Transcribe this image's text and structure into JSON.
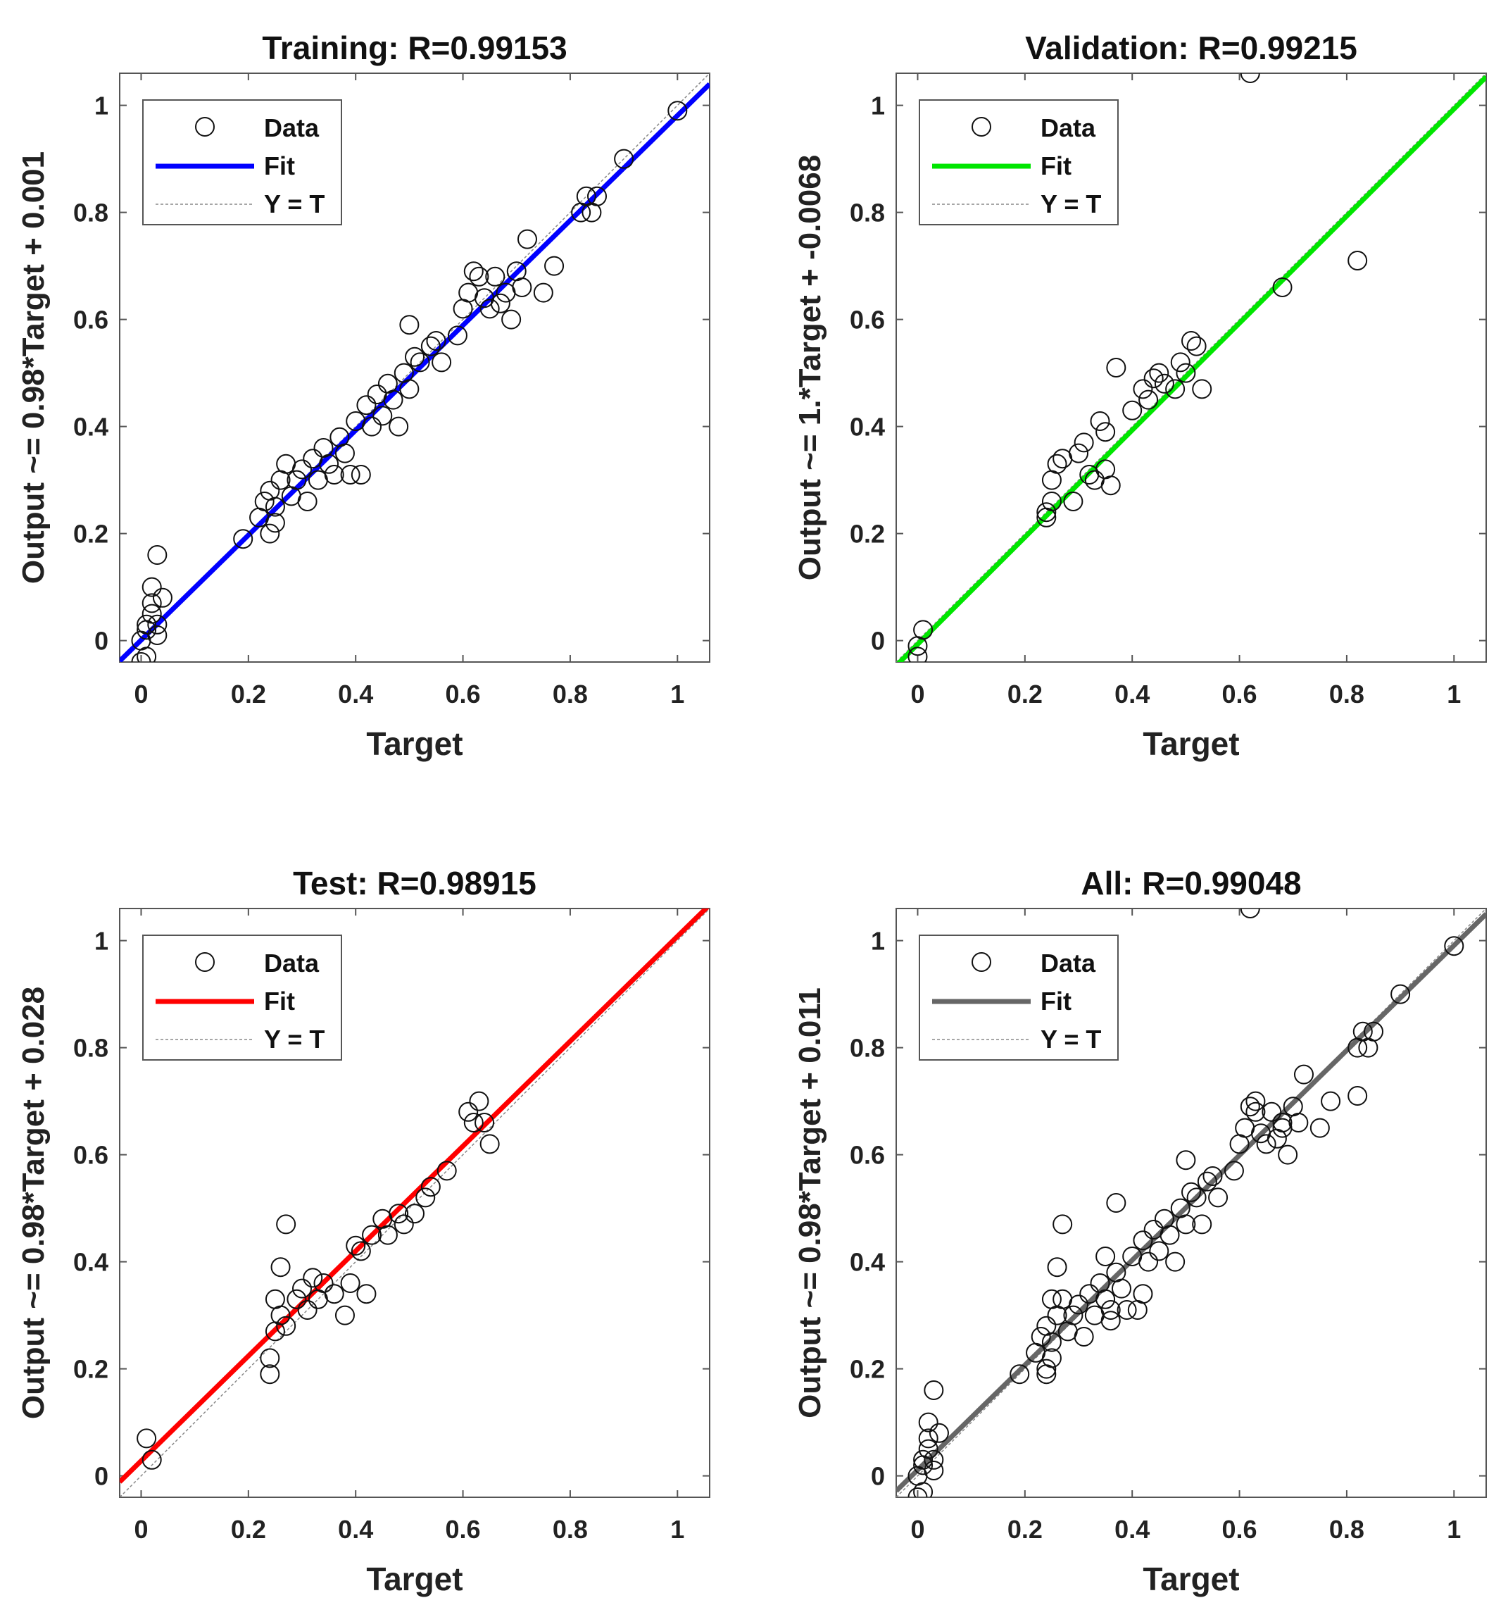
{
  "chart_data": [
    {
      "type": "scatter",
      "title": "Training: R=0.99153",
      "xlabel": "Target",
      "ylabel": "Output ~= 0.98*Target + 0.001",
      "xlim": [
        -0.04,
        1.06
      ],
      "ylim": [
        -0.04,
        1.06
      ],
      "xticks": [
        "0",
        "0.2",
        "0.4",
        "0.6",
        "0.8",
        "1"
      ],
      "yticks": [
        "0",
        "0.2",
        "0.4",
        "0.6",
        "0.8",
        "1"
      ],
      "fit": {
        "slope": 0.98,
        "intercept": 0.001,
        "color": "#0000ff"
      },
      "legend": {
        "position": "top-left",
        "entries": [
          "Data",
          "Fit",
          "Y = T"
        ]
      },
      "points": [
        [
          0.0,
          -0.04
        ],
        [
          0.01,
          -0.03
        ],
        [
          0.0,
          0.0
        ],
        [
          0.01,
          0.02
        ],
        [
          0.02,
          0.05
        ],
        [
          0.03,
          0.01
        ],
        [
          0.02,
          0.1
        ],
        [
          0.03,
          0.16
        ],
        [
          0.02,
          0.07
        ],
        [
          0.04,
          0.08
        ],
        [
          0.03,
          0.03
        ],
        [
          0.01,
          0.03
        ],
        [
          0.19,
          0.19
        ],
        [
          0.22,
          0.23
        ],
        [
          0.23,
          0.26
        ],
        [
          0.24,
          0.2
        ],
        [
          0.25,
          0.22
        ],
        [
          0.24,
          0.28
        ],
        [
          0.26,
          0.3
        ],
        [
          0.25,
          0.25
        ],
        [
          0.27,
          0.33
        ],
        [
          0.28,
          0.27
        ],
        [
          0.29,
          0.3
        ],
        [
          0.3,
          0.32
        ],
        [
          0.31,
          0.26
        ],
        [
          0.32,
          0.34
        ],
        [
          0.33,
          0.3
        ],
        [
          0.34,
          0.36
        ],
        [
          0.35,
          0.33
        ],
        [
          0.36,
          0.31
        ],
        [
          0.37,
          0.38
        ],
        [
          0.38,
          0.35
        ],
        [
          0.39,
          0.31
        ],
        [
          0.41,
          0.31
        ],
        [
          0.4,
          0.41
        ],
        [
          0.42,
          0.44
        ],
        [
          0.43,
          0.4
        ],
        [
          0.44,
          0.46
        ],
        [
          0.45,
          0.42
        ],
        [
          0.46,
          0.48
        ],
        [
          0.47,
          0.45
        ],
        [
          0.48,
          0.4
        ],
        [
          0.49,
          0.5
        ],
        [
          0.5,
          0.47
        ],
        [
          0.51,
          0.53
        ],
        [
          0.5,
          0.59
        ],
        [
          0.52,
          0.52
        ],
        [
          0.54,
          0.55
        ],
        [
          0.55,
          0.56
        ],
        [
          0.56,
          0.52
        ],
        [
          0.59,
          0.57
        ],
        [
          0.6,
          0.62
        ],
        [
          0.61,
          0.65
        ],
        [
          0.62,
          0.69
        ],
        [
          0.63,
          0.68
        ],
        [
          0.64,
          0.64
        ],
        [
          0.65,
          0.62
        ],
        [
          0.66,
          0.68
        ],
        [
          0.67,
          0.63
        ],
        [
          0.68,
          0.65
        ],
        [
          0.69,
          0.6
        ],
        [
          0.7,
          0.69
        ],
        [
          0.71,
          0.66
        ],
        [
          0.72,
          0.75
        ],
        [
          0.75,
          0.65
        ],
        [
          0.77,
          0.7
        ],
        [
          0.82,
          0.8
        ],
        [
          0.83,
          0.83
        ],
        [
          0.84,
          0.8
        ],
        [
          0.85,
          0.83
        ],
        [
          0.9,
          0.9
        ],
        [
          1.0,
          0.99
        ]
      ]
    },
    {
      "type": "scatter",
      "title": "Validation: R=0.99215",
      "xlabel": "Target",
      "ylabel": "Output ~= 1.*Target + -0.0068",
      "xlim": [
        -0.04,
        1.06
      ],
      "ylim": [
        -0.04,
        1.06
      ],
      "xticks": [
        "0",
        "0.2",
        "0.4",
        "0.6",
        "0.8",
        "1"
      ],
      "yticks": [
        "0",
        "0.2",
        "0.4",
        "0.6",
        "0.8",
        "1"
      ],
      "fit": {
        "slope": 1.0,
        "intercept": -0.0068,
        "color": "#00e600"
      },
      "legend": {
        "position": "top-left",
        "entries": [
          "Data",
          "Fit",
          "Y = T"
        ]
      },
      "points": [
        [
          0.0,
          -0.03
        ],
        [
          0.01,
          0.02
        ],
        [
          0.0,
          -0.01
        ],
        [
          0.24,
          0.24
        ],
        [
          0.24,
          0.23
        ],
        [
          0.25,
          0.26
        ],
        [
          0.25,
          0.3
        ],
        [
          0.26,
          0.33
        ],
        [
          0.27,
          0.34
        ],
        [
          0.29,
          0.26
        ],
        [
          0.3,
          0.35
        ],
        [
          0.31,
          0.37
        ],
        [
          0.32,
          0.31
        ],
        [
          0.33,
          0.3
        ],
        [
          0.34,
          0.41
        ],
        [
          0.35,
          0.39
        ],
        [
          0.35,
          0.32
        ],
        [
          0.36,
          0.29
        ],
        [
          0.37,
          0.51
        ],
        [
          0.4,
          0.43
        ],
        [
          0.42,
          0.47
        ],
        [
          0.43,
          0.45
        ],
        [
          0.44,
          0.49
        ],
        [
          0.45,
          0.5
        ],
        [
          0.46,
          0.48
        ],
        [
          0.48,
          0.47
        ],
        [
          0.49,
          0.52
        ],
        [
          0.5,
          0.5
        ],
        [
          0.52,
          0.55
        ],
        [
          0.53,
          0.47
        ],
        [
          0.51,
          0.56
        ],
        [
          0.62,
          1.06
        ],
        [
          0.68,
          0.66
        ],
        [
          0.82,
          0.71
        ]
      ]
    },
    {
      "type": "scatter",
      "title": "Test: R=0.98915",
      "xlabel": "Target",
      "ylabel": "Output ~= 0.98*Target + 0.028",
      "xlim": [
        -0.04,
        1.06
      ],
      "ylim": [
        -0.04,
        1.06
      ],
      "xticks": [
        "0",
        "0.2",
        "0.4",
        "0.6",
        "0.8",
        "1"
      ],
      "yticks": [
        "0",
        "0.2",
        "0.4",
        "0.6",
        "0.8",
        "1"
      ],
      "fit": {
        "slope": 0.98,
        "intercept": 0.028,
        "color": "#ff0000"
      },
      "legend": {
        "position": "top-left",
        "entries": [
          "Data",
          "Fit",
          "Y = T"
        ]
      },
      "points": [
        [
          0.01,
          0.07
        ],
        [
          0.02,
          0.03
        ],
        [
          0.24,
          0.22
        ],
        [
          0.24,
          0.19
        ],
        [
          0.25,
          0.27
        ],
        [
          0.25,
          0.33
        ],
        [
          0.26,
          0.3
        ],
        [
          0.27,
          0.28
        ],
        [
          0.26,
          0.39
        ],
        [
          0.27,
          0.47
        ],
        [
          0.29,
          0.33
        ],
        [
          0.3,
          0.35
        ],
        [
          0.31,
          0.31
        ],
        [
          0.32,
          0.37
        ],
        [
          0.33,
          0.33
        ],
        [
          0.34,
          0.36
        ],
        [
          0.36,
          0.34
        ],
        [
          0.38,
          0.3
        ],
        [
          0.39,
          0.36
        ],
        [
          0.4,
          0.43
        ],
        [
          0.41,
          0.42
        ],
        [
          0.42,
          0.34
        ],
        [
          0.43,
          0.45
        ],
        [
          0.45,
          0.48
        ],
        [
          0.46,
          0.45
        ],
        [
          0.48,
          0.49
        ],
        [
          0.49,
          0.47
        ],
        [
          0.51,
          0.49
        ],
        [
          0.53,
          0.52
        ],
        [
          0.54,
          0.54
        ],
        [
          0.57,
          0.57
        ],
        [
          0.61,
          0.68
        ],
        [
          0.62,
          0.66
        ],
        [
          0.63,
          0.7
        ],
        [
          0.64,
          0.66
        ],
        [
          0.65,
          0.62
        ]
      ]
    },
    {
      "type": "scatter",
      "title": "All: R=0.99048",
      "xlabel": "Target",
      "ylabel": "Output ~= 0.98*Target + 0.011",
      "xlim": [
        -0.04,
        1.06
      ],
      "ylim": [
        -0.04,
        1.06
      ],
      "xticks": [
        "0",
        "0.2",
        "0.4",
        "0.6",
        "0.8",
        "1"
      ],
      "yticks": [
        "0",
        "0.2",
        "0.4",
        "0.6",
        "0.8",
        "1"
      ],
      "fit": {
        "slope": 0.98,
        "intercept": 0.011,
        "color": "#666666"
      },
      "legend": {
        "position": "top-left",
        "entries": [
          "Data",
          "Fit",
          "Y = T"
        ]
      },
      "points": [
        [
          0.0,
          -0.04
        ],
        [
          0.01,
          -0.03
        ],
        [
          0.0,
          0.0
        ],
        [
          0.01,
          0.02
        ],
        [
          0.02,
          0.05
        ],
        [
          0.03,
          0.01
        ],
        [
          0.02,
          0.1
        ],
        [
          0.03,
          0.16
        ],
        [
          0.02,
          0.07
        ],
        [
          0.04,
          0.08
        ],
        [
          0.03,
          0.03
        ],
        [
          0.01,
          0.03
        ],
        [
          0.19,
          0.19
        ],
        [
          0.22,
          0.23
        ],
        [
          0.23,
          0.26
        ],
        [
          0.24,
          0.2
        ],
        [
          0.25,
          0.22
        ],
        [
          0.24,
          0.28
        ],
        [
          0.26,
          0.3
        ],
        [
          0.25,
          0.25
        ],
        [
          0.27,
          0.33
        ],
        [
          0.28,
          0.27
        ],
        [
          0.29,
          0.3
        ],
        [
          0.3,
          0.32
        ],
        [
          0.31,
          0.26
        ],
        [
          0.32,
          0.34
        ],
        [
          0.33,
          0.3
        ],
        [
          0.34,
          0.36
        ],
        [
          0.35,
          0.33
        ],
        [
          0.36,
          0.31
        ],
        [
          0.37,
          0.38
        ],
        [
          0.38,
          0.35
        ],
        [
          0.39,
          0.31
        ],
        [
          0.41,
          0.31
        ],
        [
          0.4,
          0.41
        ],
        [
          0.42,
          0.44
        ],
        [
          0.43,
          0.4
        ],
        [
          0.44,
          0.46
        ],
        [
          0.45,
          0.42
        ],
        [
          0.46,
          0.48
        ],
        [
          0.47,
          0.45
        ],
        [
          0.48,
          0.4
        ],
        [
          0.49,
          0.5
        ],
        [
          0.5,
          0.47
        ],
        [
          0.51,
          0.53
        ],
        [
          0.5,
          0.59
        ],
        [
          0.52,
          0.52
        ],
        [
          0.54,
          0.55
        ],
        [
          0.55,
          0.56
        ],
        [
          0.56,
          0.52
        ],
        [
          0.59,
          0.57
        ],
        [
          0.6,
          0.62
        ],
        [
          0.61,
          0.65
        ],
        [
          0.62,
          0.69
        ],
        [
          0.63,
          0.68
        ],
        [
          0.64,
          0.64
        ],
        [
          0.65,
          0.62
        ],
        [
          0.66,
          0.68
        ],
        [
          0.67,
          0.63
        ],
        [
          0.68,
          0.65
        ],
        [
          0.69,
          0.6
        ],
        [
          0.7,
          0.69
        ],
        [
          0.71,
          0.66
        ],
        [
          0.72,
          0.75
        ],
        [
          0.75,
          0.65
        ],
        [
          0.77,
          0.7
        ],
        [
          0.82,
          0.8
        ],
        [
          0.83,
          0.83
        ],
        [
          0.84,
          0.8
        ],
        [
          0.85,
          0.83
        ],
        [
          0.9,
          0.9
        ],
        [
          1.0,
          0.99
        ],
        [
          0.27,
          0.47
        ],
        [
          0.26,
          0.39
        ],
        [
          0.37,
          0.51
        ],
        [
          0.62,
          1.06
        ],
        [
          0.82,
          0.71
        ],
        [
          0.68,
          0.66
        ],
        [
          0.53,
          0.47
        ],
        [
          0.42,
          0.34
        ],
        [
          0.36,
          0.29
        ],
        [
          0.24,
          0.19
        ],
        [
          0.25,
          0.33
        ],
        [
          0.35,
          0.41
        ],
        [
          0.63,
          0.7
        ]
      ]
    }
  ]
}
